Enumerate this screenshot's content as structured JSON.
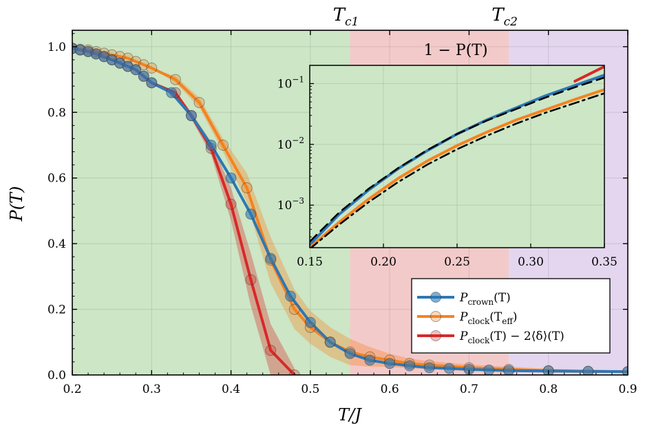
{
  "chart_data": {
    "type": "line",
    "xlabel": "T/J",
    "ylabel": "P(T)",
    "xlim": [
      0.2,
      0.9
    ],
    "ylim": [
      0.0,
      1.05
    ],
    "xticks": [
      "0.2",
      "0.3",
      "0.4",
      "0.5",
      "0.6",
      "0.7",
      "0.8",
      "0.9"
    ],
    "yticks": [
      "0.0",
      "0.2",
      "0.4",
      "0.6",
      "0.8",
      "1.0"
    ],
    "grid": true,
    "legend_position": "bottom-right",
    "regions": [
      {
        "from": 0.2,
        "to": 0.55,
        "color": "#cce6c6",
        "label": ""
      },
      {
        "from": 0.55,
        "to": 0.75,
        "color": "#f3caca",
        "label": "Tc1"
      },
      {
        "from": 0.75,
        "to": 0.9,
        "color": "#e3d6ee",
        "label": "Tc2"
      }
    ],
    "transition_labels": [
      {
        "x": 0.55,
        "main": "T",
        "sub": "c1"
      },
      {
        "x": 0.75,
        "main": "T",
        "sub": "c2"
      }
    ],
    "series": [
      {
        "name": "P_crown(T)",
        "legend_main": "P",
        "legend_sub": "crown",
        "legend_tail": "(T)",
        "color": "#2c78b4",
        "x": [
          0.2,
          0.21,
          0.22,
          0.23,
          0.24,
          0.25,
          0.26,
          0.27,
          0.28,
          0.29,
          0.3,
          0.325,
          0.35,
          0.375,
          0.4,
          0.425,
          0.45,
          0.475,
          0.5,
          0.525,
          0.55,
          0.575,
          0.6,
          0.625,
          0.65,
          0.675,
          0.7,
          0.725,
          0.75,
          0.8,
          0.85,
          0.9
        ],
        "y": [
          0.995,
          0.99,
          0.985,
          0.978,
          0.97,
          0.96,
          0.95,
          0.94,
          0.93,
          0.91,
          0.89,
          0.86,
          0.79,
          0.7,
          0.6,
          0.49,
          0.355,
          0.24,
          0.16,
          0.1,
          0.065,
          0.045,
          0.035,
          0.028,
          0.022,
          0.02,
          0.017,
          0.015,
          0.013,
          0.012,
          0.011,
          0.01
        ]
      },
      {
        "name": "P_clock(T_eff)",
        "legend_main": "P",
        "legend_sub": "clock",
        "legend_tail": "(T",
        "legend_sub2": "eff",
        "legend_end": ")",
        "color": "#f6821f",
        "x": [
          0.2,
          0.21,
          0.22,
          0.23,
          0.24,
          0.25,
          0.26,
          0.27,
          0.28,
          0.29,
          0.3,
          0.33,
          0.36,
          0.39,
          0.42,
          0.45,
          0.48,
          0.5,
          0.525,
          0.55,
          0.575,
          0.6,
          0.625,
          0.65,
          0.7,
          0.75,
          0.8,
          0.85,
          0.9
        ],
        "y": [
          0.995,
          0.992,
          0.99,
          0.985,
          0.98,
          0.975,
          0.97,
          0.965,
          0.955,
          0.945,
          0.935,
          0.9,
          0.83,
          0.7,
          0.57,
          0.35,
          0.2,
          0.145,
          0.1,
          0.07,
          0.055,
          0.045,
          0.035,
          0.03,
          0.022,
          0.017,
          0.013,
          0.011,
          0.01
        ],
        "band": [
          0.0,
          0.0,
          0.0,
          0.0,
          0.0,
          0.0,
          0.0,
          0.0,
          0.0,
          0.0,
          0.0,
          0.01,
          0.015,
          0.02,
          0.045,
          0.07,
          0.06,
          0.05,
          0.045,
          0.04,
          0.03,
          0.02,
          0.015,
          0.012,
          0.01,
          0.008,
          0.006,
          0.005,
          0.004
        ]
      },
      {
        "name": "P_clock(T) - 2<delta>(T)",
        "legend_main": "P",
        "legend_sub": "clock",
        "legend_tail": "(T) − 2⟨δ⟩(T)",
        "color": "#d62a28",
        "x": [
          0.2,
          0.21,
          0.22,
          0.23,
          0.24,
          0.25,
          0.26,
          0.27,
          0.28,
          0.29,
          0.3,
          0.33,
          0.35,
          0.375,
          0.4,
          0.425,
          0.45,
          0.48
        ],
        "y": [
          0.995,
          0.99,
          0.985,
          0.978,
          0.97,
          0.96,
          0.95,
          0.94,
          0.93,
          0.91,
          0.89,
          0.86,
          0.79,
          0.69,
          0.52,
          0.29,
          0.075,
          0.0
        ],
        "band": [
          0.0,
          0.0,
          0.0,
          0.0,
          0.0,
          0.0,
          0.0,
          0.0,
          0.0,
          0.0,
          0.0,
          0.005,
          0.01,
          0.02,
          0.05,
          0.08,
          0.08,
          0.02
        ]
      }
    ],
    "inset": {
      "title": "1 − P(T)",
      "xlim": [
        0.15,
        0.35
      ],
      "ylim_log10": [
        -3.7,
        -0.7
      ],
      "xticks": [
        "0.15",
        "0.20",
        "0.25",
        "0.30",
        "0.35"
      ],
      "yticks": [
        {
          "base": "10",
          "exp": "−1",
          "value": -1
        },
        {
          "base": "10",
          "exp": "−2",
          "value": -2
        },
        {
          "base": "10",
          "exp": "−3",
          "value": -3
        }
      ],
      "series": [
        {
          "name": "crown",
          "color": "#2c78b4",
          "style": "solid",
          "x": [
            0.15,
            0.17,
            0.19,
            0.21,
            0.23,
            0.25,
            0.27,
            0.29,
            0.31,
            0.33,
            0.35
          ],
          "log10y": [
            -3.65,
            -3.15,
            -2.75,
            -2.4,
            -2.1,
            -1.83,
            -1.6,
            -1.4,
            -1.2,
            -1.03,
            -0.86
          ]
        },
        {
          "name": "crown-fit",
          "color": "#000000",
          "style": "dash",
          "x": [
            0.15,
            0.17,
            0.19,
            0.21,
            0.23,
            0.25,
            0.27,
            0.29,
            0.31,
            0.33,
            0.35
          ],
          "log10y": [
            -3.6,
            -3.12,
            -2.73,
            -2.39,
            -2.09,
            -1.83,
            -1.61,
            -1.42,
            -1.23,
            -1.06,
            -0.9
          ]
        },
        {
          "name": "clock-eff",
          "color": "#f6821f",
          "style": "solid",
          "x": [
            0.15,
            0.17,
            0.19,
            0.21,
            0.23,
            0.25,
            0.27,
            0.29,
            0.31,
            0.33,
            0.35
          ],
          "log10y": [
            -3.7,
            -3.28,
            -2.9,
            -2.56,
            -2.27,
            -2.02,
            -1.8,
            -1.6,
            -1.43,
            -1.26,
            -1.1
          ]
        },
        {
          "name": "clock-fit",
          "color": "#000000",
          "style": "dashdot",
          "x": [
            0.15,
            0.17,
            0.19,
            0.21,
            0.23,
            0.25,
            0.27,
            0.29,
            0.31,
            0.33,
            0.35
          ],
          "log10y": [
            -3.72,
            -3.32,
            -2.95,
            -2.62,
            -2.33,
            -2.08,
            -1.86,
            -1.66,
            -1.48,
            -1.32,
            -1.16
          ]
        },
        {
          "name": "clock-diff",
          "color": "#d62a28",
          "style": "solid",
          "x": [
            0.33,
            0.34,
            0.35
          ],
          "log10y": [
            -0.96,
            -0.84,
            -0.72
          ]
        }
      ]
    }
  }
}
